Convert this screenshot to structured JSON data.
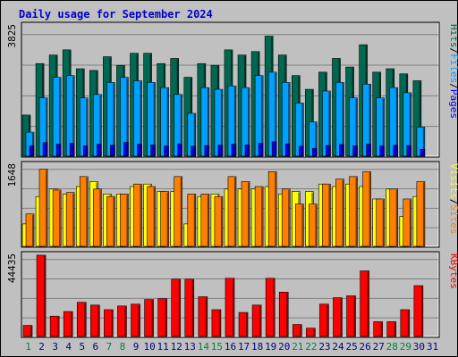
{
  "title": "Daily usage for September 2024",
  "colors": {
    "hits": "#006850",
    "files": "#00a0ff",
    "pages": "#0000ff",
    "visits": "#ffff00",
    "sites": "#ff8000",
    "kbytes": "#ff0000",
    "weekend_day": "#008040",
    "weekday": "#000080",
    "background": "#c0c0c0"
  },
  "chart_data": [
    {
      "type": "bar",
      "panel": "hits-files-pages",
      "ylabel_parts": [
        "Pages",
        "/",
        "Files",
        "/",
        "Hits"
      ],
      "ymax_label": "3825",
      "ylim": [
        0,
        3825
      ],
      "categories": [
        "1",
        "2",
        "3",
        "4",
        "5",
        "6",
        "7",
        "8",
        "9",
        "10",
        "11",
        "12",
        "13",
        "14",
        "15",
        "16",
        "17",
        "18",
        "19",
        "20",
        "21",
        "22",
        "23",
        "24",
        "25",
        "26",
        "27",
        "28",
        "29",
        "30"
      ],
      "series": [
        {
          "name": "Hits",
          "values": [
            1200,
            2700,
            2950,
            3100,
            2550,
            2500,
            2900,
            2650,
            3000,
            3000,
            2700,
            2850,
            2300,
            2700,
            2650,
            3100,
            2950,
            3050,
            3500,
            2950,
            2350,
            1950,
            2450,
            2850,
            2600,
            3250,
            2450,
            2550,
            2400,
            2200
          ]
        },
        {
          "name": "Files",
          "values": [
            700,
            1700,
            2300,
            2350,
            1700,
            1800,
            2150,
            2300,
            2200,
            2150,
            2000,
            1800,
            1250,
            2000,
            1950,
            2050,
            2000,
            2350,
            2450,
            2150,
            1550,
            1000,
            1900,
            2150,
            1700,
            2100,
            1700,
            2000,
            1850,
            850
          ]
        },
        {
          "name": "Pages",
          "values": [
            300,
            400,
            350,
            380,
            300,
            350,
            320,
            400,
            350,
            330,
            300,
            360,
            290,
            310,
            320,
            350,
            330,
            380,
            420,
            360,
            290,
            230,
            310,
            340,
            300,
            350,
            300,
            320,
            310,
            200
          ]
        }
      ]
    },
    {
      "type": "bar",
      "panel": "visits-sites",
      "ylabel_parts": [
        "Sites",
        "/",
        "Visits"
      ],
      "ymax_label": "1648",
      "ylim": [
        0,
        1648
      ],
      "categories": [
        "1",
        "2",
        "3",
        "4",
        "5",
        "6",
        "7",
        "8",
        "9",
        "10",
        "11",
        "12",
        "13",
        "14",
        "15",
        "16",
        "17",
        "18",
        "19",
        "20",
        "21",
        "22",
        "23",
        "24",
        "25",
        "26",
        "27",
        "28",
        "29",
        "30"
      ],
      "series": [
        {
          "name": "Visits",
          "values": [
            450,
            1000,
            1150,
            1050,
            1200,
            1300,
            1050,
            1050,
            1200,
            1250,
            1100,
            1100,
            450,
            1000,
            1050,
            1150,
            1150,
            1150,
            1200,
            1050,
            1100,
            1100,
            1250,
            1200,
            1250,
            1200,
            950,
            1150,
            600,
            1000
          ]
        },
        {
          "name": "Sites",
          "values": [
            650,
            1550,
            1130,
            1080,
            1400,
            1150,
            1000,
            1050,
            1250,
            1200,
            1100,
            1400,
            1050,
            1050,
            1000,
            1400,
            1300,
            1200,
            1500,
            1150,
            850,
            850,
            1250,
            1350,
            1400,
            1500,
            950,
            1150,
            950,
            1300
          ]
        }
      ]
    },
    {
      "type": "bar",
      "panel": "kbytes",
      "ylabel_parts": [
        "KBytes"
      ],
      "ymax_label": "44435",
      "ylim": [
        0,
        44435
      ],
      "categories": [
        "1",
        "2",
        "3",
        "4",
        "5",
        "6",
        "7",
        "8",
        "9",
        "10",
        "11",
        "12",
        "13",
        "14",
        "15",
        "16",
        "17",
        "18",
        "19",
        "20",
        "21",
        "22",
        "23",
        "24",
        "25",
        "26",
        "27",
        "28",
        "29",
        "30"
      ],
      "series": [
        {
          "name": "KBytes",
          "values": [
            6000,
            44000,
            11000,
            13500,
            18500,
            17000,
            14500,
            16500,
            17500,
            20000,
            20500,
            31000,
            31000,
            21500,
            14500,
            31500,
            13000,
            17000,
            31500,
            24000,
            6500,
            4500,
            17500,
            21000,
            22000,
            35500,
            8000,
            8000,
            14500,
            27500
          ]
        }
      ]
    }
  ],
  "x_axis": {
    "days": [
      "1",
      "2",
      "3",
      "4",
      "5",
      "6",
      "7",
      "8",
      "9",
      "10",
      "11",
      "12",
      "13",
      "14",
      "15",
      "16",
      "17",
      "18",
      "19",
      "20",
      "21",
      "22",
      "23",
      "24",
      "25",
      "26",
      "27",
      "28",
      "29",
      "30",
      "31"
    ],
    "weekend_days": [
      "1",
      "7",
      "8",
      "14",
      "15",
      "21",
      "22",
      "28",
      "29"
    ]
  }
}
